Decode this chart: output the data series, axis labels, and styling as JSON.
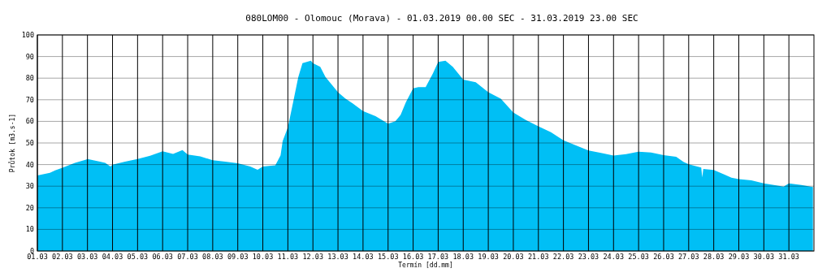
{
  "chart_data": {
    "type": "area",
    "title": "080LOM00  -  Olomouc (Morava)  -  01.03.2019 00.00 SEC - 31.03.2019 23.00 SEC",
    "xlabel": "Termín [dd.mm]",
    "ylabel": "Průtok [m3.s-1]",
    "x": [
      "2019-03-01T00:00",
      "2019-03-01T12:00",
      "2019-03-01T17:00",
      "2019-03-02T00:00",
      "2019-03-02T12:00",
      "2019-03-02T22:00",
      "2019-03-03T00:00",
      "2019-03-03T12:00",
      "2019-03-03T17:00",
      "2019-03-03T22:00",
      "2019-03-04T00:00",
      "2019-03-04T12:00",
      "2019-03-05T00:00",
      "2019-03-05T12:00",
      "2019-03-06T00:00",
      "2019-03-06T10:00",
      "2019-03-06T19:00",
      "2019-03-07T00:00",
      "2019-03-07T12:00",
      "2019-03-08T00:00",
      "2019-03-08T12:00",
      "2019-03-09T00:00",
      "2019-03-09T12:00",
      "2019-03-09T19:00",
      "2019-03-10T00:00",
      "2019-03-10T12:00",
      "2019-03-10T17:00",
      "2019-03-10T19:00",
      "2019-03-11T00:00",
      "2019-03-11T05:00",
      "2019-03-11T10:00",
      "2019-03-11T14:00",
      "2019-03-11T22:00",
      "2019-03-12T00:00",
      "2019-03-12T07:00",
      "2019-03-12T12:00",
      "2019-03-13T00:00",
      "2019-03-13T07:00",
      "2019-03-13T14:00",
      "2019-03-14T00:00",
      "2019-03-14T12:00",
      "2019-03-15T00:00",
      "2019-03-15T07:00",
      "2019-03-15T12:00",
      "2019-03-15T17:00",
      "2019-03-16T00:00",
      "2019-03-16T05:00",
      "2019-03-16T12:00",
      "2019-03-16T19:00",
      "2019-03-17T00:00",
      "2019-03-17T07:00",
      "2019-03-17T14:00",
      "2019-03-18T00:00",
      "2019-03-18T12:00",
      "2019-03-19T00:00",
      "2019-03-19T12:00",
      "2019-03-20T00:00",
      "2019-03-20T12:00",
      "2019-03-21T00:00",
      "2019-03-21T12:00",
      "2019-03-22T00:00",
      "2019-03-22T12:00",
      "2019-03-23T00:00",
      "2019-03-23T12:00",
      "2019-03-24T00:00",
      "2019-03-24T12:00",
      "2019-03-25T00:00",
      "2019-03-25T12:00",
      "2019-03-26T00:00",
      "2019-03-26T12:00",
      "2019-03-26T19:00",
      "2019-03-27T00:00",
      "2019-03-27T12:00",
      "2019-03-27T13:00",
      "2019-03-27T14:00",
      "2019-03-28T00:00",
      "2019-03-28T10:00",
      "2019-03-28T17:00",
      "2019-03-29T00:00",
      "2019-03-29T12:00",
      "2019-03-30T00:00",
      "2019-03-30T12:00",
      "2019-03-30T19:00",
      "2019-03-31T00:00",
      "2019-03-31T12:00",
      "2019-03-31T23:00"
    ],
    "series": [
      {
        "color": "#00bff5",
        "values": [
          35,
          36.2,
          37.3,
          38.5,
          40.8,
          42.2,
          42.6,
          41.4,
          40.8,
          39.1,
          39.9,
          41.4,
          42.6,
          44.1,
          46.1,
          44.9,
          46.7,
          44.6,
          43.8,
          42,
          41.4,
          40.6,
          39.1,
          37.6,
          39.1,
          39.7,
          44.3,
          50.8,
          57.2,
          68.8,
          80.5,
          86.9,
          88.1,
          86.9,
          85.2,
          80.5,
          73.5,
          70.6,
          68.3,
          64.8,
          62.4,
          58.9,
          60.1,
          63,
          68.8,
          75.3,
          75.8,
          75.8,
          82.2,
          87.5,
          88.1,
          85.2,
          79.3,
          78.1,
          73.5,
          70.5,
          64.1,
          60.6,
          57.7,
          55,
          51.2,
          48.9,
          46.5,
          45.4,
          44.2,
          44.8,
          46,
          45.6,
          44.4,
          43.6,
          41.3,
          40.1,
          38.6,
          34,
          38,
          37.5,
          35.4,
          33.9,
          33.3,
          32.7,
          31.3,
          30.4,
          29.8,
          31.3,
          30.5,
          29.6
        ]
      }
    ],
    "xlim": [
      "2019-03-01T00:00",
      "2019-04-01T00:00"
    ],
    "xticks": [
      {
        "value": "2019-03-01",
        "label": "01.03"
      },
      {
        "value": "2019-03-02",
        "label": "02.03"
      },
      {
        "value": "2019-03-03",
        "label": "03.03"
      },
      {
        "value": "2019-03-04",
        "label": "04.03"
      },
      {
        "value": "2019-03-05",
        "label": "05.03"
      },
      {
        "value": "2019-03-06",
        "label": "06.03"
      },
      {
        "value": "2019-03-07",
        "label": "07.03"
      },
      {
        "value": "2019-03-08",
        "label": "08.03"
      },
      {
        "value": "2019-03-09",
        "label": "09.03"
      },
      {
        "value": "2019-03-10",
        "label": "10.03"
      },
      {
        "value": "2019-03-11",
        "label": "11.03"
      },
      {
        "value": "2019-03-12",
        "label": "12.03"
      },
      {
        "value": "2019-03-13",
        "label": "13.03"
      },
      {
        "value": "2019-03-14",
        "label": "14.03"
      },
      {
        "value": "2019-03-15",
        "label": "15.03"
      },
      {
        "value": "2019-03-16",
        "label": "16.03"
      },
      {
        "value": "2019-03-17",
        "label": "17.03"
      },
      {
        "value": "2019-03-18",
        "label": "18.03"
      },
      {
        "value": "2019-03-19",
        "label": "19.03"
      },
      {
        "value": "2019-03-20",
        "label": "20.03"
      },
      {
        "value": "2019-03-21",
        "label": "21.03"
      },
      {
        "value": "2019-03-22",
        "label": "22.03"
      },
      {
        "value": "2019-03-23",
        "label": "23.03"
      },
      {
        "value": "2019-03-24",
        "label": "24.03"
      },
      {
        "value": "2019-03-25",
        "label": "25.03"
      },
      {
        "value": "2019-03-26",
        "label": "26.03"
      },
      {
        "value": "2019-03-27",
        "label": "27.03"
      },
      {
        "value": "2019-03-28",
        "label": "28.03"
      },
      {
        "value": "2019-03-29",
        "label": "29.03"
      },
      {
        "value": "2019-03-30",
        "label": "30.03"
      },
      {
        "value": "2019-03-31",
        "label": "31.03"
      }
    ],
    "ylim": [
      0,
      100
    ],
    "yticks": [
      0,
      10,
      20,
      30,
      40,
      50,
      60,
      70,
      80,
      90,
      100
    ],
    "grid": true
  }
}
